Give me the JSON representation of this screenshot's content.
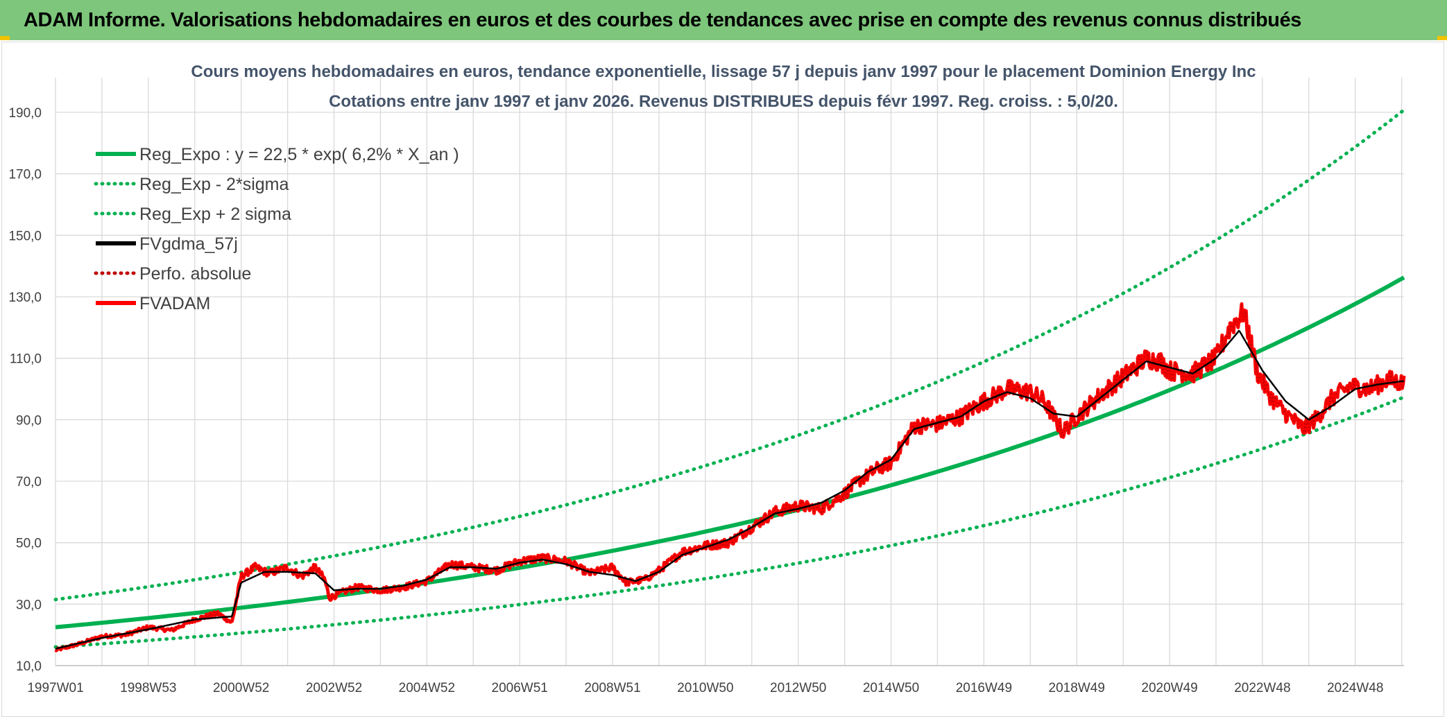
{
  "banner": {
    "title": "ADAM Informe. Valorisations hebdomadaires en euros et des courbes de tendances avec prise en compte des revenus connus distribués"
  },
  "colors": {
    "banner_bg": "#7dc67b",
    "regression": "#00b050",
    "fvgdma": "#000000",
    "fvadam": "#ff0000",
    "perfo": "#c00000",
    "grid": "#d9d9d9"
  },
  "chart_data": {
    "type": "line",
    "title_line1": "Cours moyens hebdomadaires en euros, tendance exponentielle, lissage 57 j depuis janv 1997 pour le placement Dominion Energy Inc",
    "title_line2": "Cotations entre janv 1997 et janv 2026. Revenus DISTRIBUES depuis févr 1997. Reg. croiss. : 5,0/20.",
    "x_range_years": [
      1997.0,
      2026.05
    ],
    "ylim": [
      10,
      190
    ],
    "y_ticks": [
      "10,0",
      "30,0",
      "50,0",
      "70,0",
      "90,0",
      "110,0",
      "130,0",
      "150,0",
      "170,0",
      "190,0"
    ],
    "y_tick_values": [
      10,
      30,
      50,
      70,
      90,
      110,
      130,
      150,
      170,
      190
    ],
    "x_tick_labels": [
      "1997W01",
      "1998W53",
      "2000W52",
      "2002W52",
      "2004W52",
      "2006W51",
      "2008W51",
      "2010W50",
      "2012W50",
      "2014W50",
      "2016W49",
      "2018W49",
      "2020W49",
      "2022W48",
      "2024W48"
    ],
    "x_tick_years": [
      1997.0,
      1999.0,
      2001.0,
      2003.0,
      2005.0,
      2007.0,
      2009.0,
      2011.0,
      2013.0,
      2015.0,
      2017.0,
      2019.0,
      2021.0,
      2023.0,
      2025.0
    ],
    "regression": {
      "a": 22.5,
      "rate": 0.062,
      "sigma_factor": 1.4
    },
    "legend": [
      {
        "label": "Reg_Expo : y = 22,5 * exp( 6,2% *  X_an )",
        "color": "#00b050",
        "style": "solid"
      },
      {
        "label": "Reg_Exp - 2*sigma",
        "color": "#00b050",
        "style": "dotted"
      },
      {
        "label": "Reg_Exp + 2 sigma",
        "color": "#00b050",
        "style": "dotted"
      },
      {
        "label": "FVgdma_57j",
        "color": "#000000",
        "style": "solid"
      },
      {
        "label": "Perfo. absolue",
        "color": "#c00000",
        "style": "dotted"
      },
      {
        "label": "FVADAM",
        "color": "#ff0000",
        "style": "solid"
      }
    ],
    "series": [
      {
        "name": "Reg_Expo",
        "x_years": [
          1997.0,
          2026.05
        ],
        "values": [
          22.5,
          136.5
        ]
      },
      {
        "name": "Reg_Exp - 2*sigma",
        "x_years": [
          1997.0,
          2026.05
        ],
        "values": [
          16.0,
          97.5
        ]
      },
      {
        "name": "Reg_Exp + 2 sigma",
        "x_years": [
          1997.0,
          2026.05
        ],
        "values": [
          31.5,
          191.5
        ]
      },
      {
        "name": "FVADAM",
        "x_years": [
          1997.0,
          1997.5,
          1998.0,
          1998.5,
          1999.0,
          1999.5,
          2000.0,
          2000.5,
          2000.8,
          2001.0,
          2001.3,
          2001.6,
          2002.0,
          2002.3,
          2002.6,
          2002.8,
          2002.9,
          2003.2,
          2003.5,
          2004.0,
          2004.5,
          2005.0,
          2005.5,
          2006.0,
          2006.5,
          2007.0,
          2007.5,
          2008.0,
          2008.5,
          2009.0,
          2009.3,
          2009.7,
          2010.0,
          2010.5,
          2011.0,
          2011.5,
          2012.0,
          2012.5,
          2013.0,
          2013.5,
          2014.0,
          2014.3,
          2014.7,
          2015.0,
          2015.5,
          2016.0,
          2016.5,
          2017.0,
          2017.5,
          2018.0,
          2018.3,
          2018.7,
          2019.0,
          2019.5,
          2020.0,
          2020.5,
          2020.8,
          2021.0,
          2021.5,
          2022.0,
          2022.3,
          2022.6,
          2022.9,
          2023.2,
          2023.5,
          2023.9,
          2024.2,
          2024.5,
          2024.9,
          2025.3,
          2025.7,
          2026.0
        ],
        "values": [
          15.0,
          17.0,
          19.5,
          20.0,
          22.5,
          21.5,
          25.0,
          27.0,
          24.0,
          39.0,
          42.0,
          40.0,
          42.0,
          39.0,
          42.0,
          38.0,
          32.0,
          34.0,
          35.5,
          34.5,
          35.5,
          37.5,
          43.0,
          42.0,
          41.0,
          44.0,
          45.0,
          44.0,
          40.0,
          42.0,
          37.0,
          38.0,
          41.0,
          47.0,
          49.0,
          50.0,
          55.0,
          60.0,
          62.0,
          61.0,
          66.0,
          70.0,
          74.0,
          76.0,
          88.0,
          88.5,
          91.0,
          96.0,
          100.0,
          99.0,
          96.0,
          86.0,
          91.0,
          98.0,
          104.0,
          110.0,
          109.0,
          106.0,
          105.0,
          110.0,
          120.0,
          125.0,
          105.0,
          97.0,
          92.0,
          87.0,
          91.0,
          97.0,
          101.0,
          100.0,
          103.0,
          102.0
        ]
      },
      {
        "name": "FVgdma_57j",
        "x_years": [
          1997.0,
          1998.0,
          1999.0,
          2000.0,
          2000.8,
          2001.0,
          2001.5,
          2002.0,
          2002.6,
          2003.0,
          2003.5,
          2004.0,
          2004.5,
          2005.0,
          2005.5,
          2006.0,
          2006.5,
          2007.0,
          2007.5,
          2008.0,
          2008.5,
          2009.0,
          2009.5,
          2010.0,
          2010.5,
          2011.0,
          2011.5,
          2012.0,
          2012.5,
          2013.0,
          2013.5,
          2014.0,
          2014.5,
          2015.0,
          2015.5,
          2016.0,
          2016.5,
          2017.0,
          2017.5,
          2018.0,
          2018.5,
          2019.0,
          2019.5,
          2020.0,
          2020.5,
          2021.0,
          2021.5,
          2022.0,
          2022.5,
          2023.0,
          2023.5,
          2024.0,
          2024.5,
          2025.0,
          2025.5,
          2026.0
        ],
        "values": [
          15.5,
          19.0,
          21.8,
          25.0,
          26.0,
          37.0,
          40.5,
          40.5,
          40.0,
          34.5,
          35.0,
          35.0,
          36.0,
          38.0,
          42.0,
          42.0,
          41.5,
          43.5,
          44.5,
          43.0,
          40.5,
          39.5,
          37.5,
          40.5,
          46.0,
          48.5,
          51.0,
          55.0,
          59.5,
          61.0,
          63.0,
          67.0,
          73.0,
          77.0,
          87.0,
          89.0,
          91.0,
          96.0,
          99.0,
          97.0,
          92.0,
          91.0,
          97.0,
          103.0,
          109.0,
          107.0,
          105.0,
          110.0,
          119.0,
          106.0,
          96.0,
          90.0,
          94.5,
          100.0,
          101.5,
          102.5
        ]
      }
    ]
  }
}
